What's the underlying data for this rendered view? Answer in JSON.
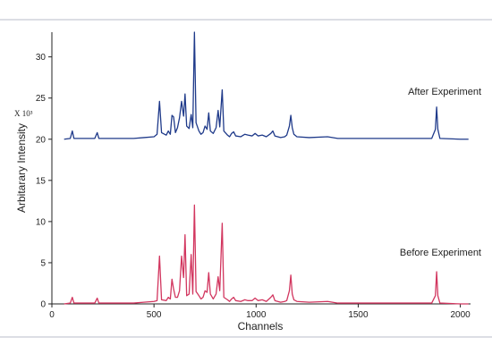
{
  "chart_data": {
    "type": "line",
    "xlabel": "Channels",
    "ylabel": "Arbitarary Intensity",
    "ylabel_multiplier": "X 10³",
    "xlim": [
      0,
      2050
    ],
    "ylim": [
      0,
      33
    ],
    "xticks": [
      0,
      500,
      1000,
      1500,
      2000
    ],
    "yticks": [
      0,
      5,
      10,
      15,
      20,
      25,
      30
    ],
    "grid": false,
    "annotations": [
      {
        "text": "After Experiment",
        "series": "after"
      },
      {
        "text": "Before Experiment",
        "series": "before"
      }
    ],
    "series": [
      {
        "id": "after",
        "color": "#1f3a8a",
        "baseline": 20,
        "points": [
          [
            60,
            20
          ],
          [
            90,
            20.1
          ],
          [
            100,
            21
          ],
          [
            108,
            20.1
          ],
          [
            210,
            20.1
          ],
          [
            222,
            20.8
          ],
          [
            230,
            20.1
          ],
          [
            400,
            20.1
          ],
          [
            450,
            20.2
          ],
          [
            500,
            20.3
          ],
          [
            515,
            20.6
          ],
          [
            527,
            24.6
          ],
          [
            537,
            20.8
          ],
          [
            560,
            20.5
          ],
          [
            570,
            21
          ],
          [
            580,
            20.6
          ],
          [
            588,
            22.9
          ],
          [
            596,
            22.7
          ],
          [
            605,
            20.8
          ],
          [
            615,
            21.4
          ],
          [
            625,
            22.6
          ],
          [
            635,
            24.6
          ],
          [
            645,
            22.8
          ],
          [
            652,
            25.5
          ],
          [
            660,
            21.6
          ],
          [
            672,
            21.3
          ],
          [
            682,
            23
          ],
          [
            690,
            21.4
          ],
          [
            698,
            33
          ],
          [
            706,
            22
          ],
          [
            720,
            21
          ],
          [
            730,
            20.6
          ],
          [
            740,
            20.8
          ],
          [
            750,
            21.6
          ],
          [
            760,
            21.2
          ],
          [
            768,
            23.2
          ],
          [
            776,
            21
          ],
          [
            790,
            20.7
          ],
          [
            804,
            21.4
          ],
          [
            814,
            23.5
          ],
          [
            822,
            21.5
          ],
          [
            834,
            26
          ],
          [
            842,
            21
          ],
          [
            860,
            20.5
          ],
          [
            870,
            20.3
          ],
          [
            880,
            20.7
          ],
          [
            890,
            20.9
          ],
          [
            900,
            20.4
          ],
          [
            925,
            20.3
          ],
          [
            945,
            20.6
          ],
          [
            960,
            20.5
          ],
          [
            980,
            20.4
          ],
          [
            995,
            20.7
          ],
          [
            1010,
            20.4
          ],
          [
            1030,
            20.5
          ],
          [
            1050,
            20.3
          ],
          [
            1072,
            20.7
          ],
          [
            1082,
            21
          ],
          [
            1092,
            20.4
          ],
          [
            1120,
            20.2
          ],
          [
            1140,
            20.3
          ],
          [
            1150,
            20.5
          ],
          [
            1163,
            21.6
          ],
          [
            1170,
            22.9
          ],
          [
            1177,
            21.4
          ],
          [
            1185,
            20.6
          ],
          [
            1200,
            20.3
          ],
          [
            1260,
            20.2
          ],
          [
            1350,
            20.3
          ],
          [
            1400,
            20.1
          ],
          [
            1500,
            20.1
          ],
          [
            1600,
            20.1
          ],
          [
            1700,
            20.1
          ],
          [
            1800,
            20.1
          ],
          [
            1860,
            20.1
          ],
          [
            1878,
            21.2
          ],
          [
            1884,
            23.9
          ],
          [
            1890,
            21.2
          ],
          [
            1900,
            20.1
          ],
          [
            2000,
            20
          ],
          [
            2040,
            20
          ]
        ]
      },
      {
        "id": "before",
        "color": "#d2365f",
        "baseline": 0,
        "points": [
          [
            60,
            0
          ],
          [
            90,
            0.1
          ],
          [
            100,
            0.8
          ],
          [
            108,
            0.1
          ],
          [
            210,
            0.1
          ],
          [
            222,
            0.7
          ],
          [
            230,
            0.1
          ],
          [
            400,
            0.1
          ],
          [
            450,
            0.2
          ],
          [
            500,
            0.3
          ],
          [
            515,
            0.4
          ],
          [
            527,
            5.8
          ],
          [
            537,
            0.5
          ],
          [
            560,
            0.4
          ],
          [
            570,
            0.8
          ],
          [
            580,
            0.6
          ],
          [
            588,
            3
          ],
          [
            596,
            1.8
          ],
          [
            605,
            0.8
          ],
          [
            615,
            0.8
          ],
          [
            625,
            1.6
          ],
          [
            635,
            5.8
          ],
          [
            645,
            3.2
          ],
          [
            652,
            8.4
          ],
          [
            660,
            1
          ],
          [
            672,
            1.2
          ],
          [
            682,
            6
          ],
          [
            690,
            1.2
          ],
          [
            698,
            12
          ],
          [
            706,
            1.5
          ],
          [
            720,
            1
          ],
          [
            730,
            0.6
          ],
          [
            740,
            0.8
          ],
          [
            750,
            1.6
          ],
          [
            760,
            1.4
          ],
          [
            768,
            3.8
          ],
          [
            776,
            1.2
          ],
          [
            790,
            0.6
          ],
          [
            804,
            1.2
          ],
          [
            814,
            3.3
          ],
          [
            822,
            1.6
          ],
          [
            834,
            9.8
          ],
          [
            842,
            0.8
          ],
          [
            860,
            0.5
          ],
          [
            870,
            0.3
          ],
          [
            880,
            0.6
          ],
          [
            890,
            0.8
          ],
          [
            900,
            0.4
          ],
          [
            925,
            0.3
          ],
          [
            945,
            0.5
          ],
          [
            960,
            0.4
          ],
          [
            980,
            0.4
          ],
          [
            995,
            0.7
          ],
          [
            1010,
            0.4
          ],
          [
            1030,
            0.5
          ],
          [
            1050,
            0.3
          ],
          [
            1072,
            0.8
          ],
          [
            1082,
            1.1
          ],
          [
            1092,
            0.4
          ],
          [
            1120,
            0.2
          ],
          [
            1140,
            0.3
          ],
          [
            1150,
            0.4
          ],
          [
            1163,
            1.6
          ],
          [
            1170,
            3.5
          ],
          [
            1177,
            1.2
          ],
          [
            1185,
            0.5
          ],
          [
            1200,
            0.3
          ],
          [
            1260,
            0.2
          ],
          [
            1350,
            0.3
          ],
          [
            1400,
            0.1
          ],
          [
            1500,
            0.1
          ],
          [
            1600,
            0.1
          ],
          [
            1700,
            0.1
          ],
          [
            1800,
            0.1
          ],
          [
            1860,
            0.1
          ],
          [
            1878,
            1
          ],
          [
            1884,
            3.9
          ],
          [
            1890,
            1
          ],
          [
            1900,
            0.1
          ],
          [
            2000,
            0
          ],
          [
            2040,
            0
          ]
        ]
      }
    ]
  }
}
